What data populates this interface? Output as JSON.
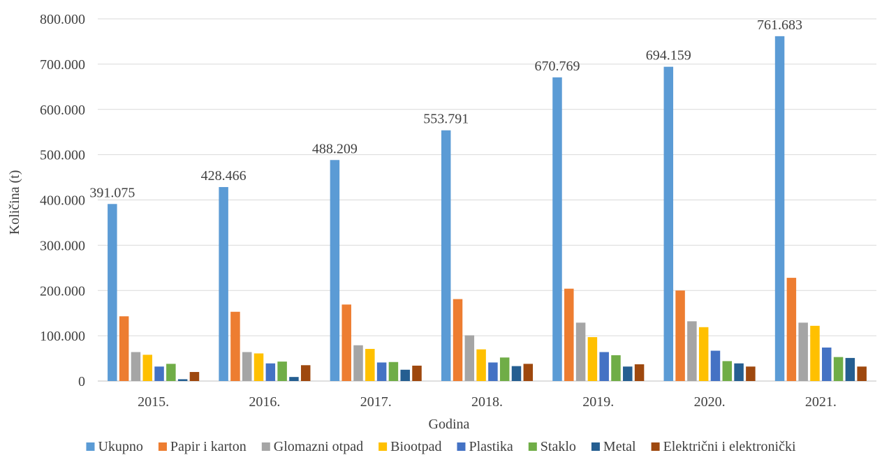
{
  "chart_data": {
    "type": "bar",
    "xlabel": "Godina",
    "ylabel": "Količina (t)",
    "ylim": [
      0,
      800000
    ],
    "yticks": [
      0,
      100000,
      200000,
      300000,
      400000,
      500000,
      600000,
      700000,
      800000
    ],
    "ytick_labels": [
      "0",
      "100.000",
      "200.000",
      "300.000",
      "400.000",
      "500.000",
      "600.000",
      "700.000",
      "800.000"
    ],
    "grid": true,
    "legend_position": "bottom",
    "categories": [
      "2015.",
      "2016.",
      "2017.",
      "2018.",
      "2019.",
      "2020.",
      "2021."
    ],
    "series": [
      {
        "name": "Ukupno",
        "color": "#5B9BD5",
        "values": [
          391075,
          428466,
          488209,
          553791,
          670769,
          694159,
          761683
        ],
        "labels": [
          "391.075",
          "428.466",
          "488.209",
          "553.791",
          "670.769",
          "694.159",
          "761.683"
        ]
      },
      {
        "name": "Papir i karton",
        "color": "#ED7D31",
        "values": [
          143000,
          153000,
          169000,
          181000,
          204000,
          200000,
          228000
        ]
      },
      {
        "name": "Glomazni otpad",
        "color": "#A5A5A5",
        "values": [
          64000,
          64000,
          79000,
          101000,
          129000,
          132000,
          129000
        ]
      },
      {
        "name": "Biootpad",
        "color": "#FFC000",
        "values": [
          58000,
          61000,
          71000,
          70000,
          97000,
          119000,
          122000
        ]
      },
      {
        "name": "Plastika",
        "color": "#4472C4",
        "values": [
          32000,
          39000,
          41000,
          41000,
          64000,
          67000,
          74000
        ]
      },
      {
        "name": "Staklo",
        "color": "#70AD47",
        "values": [
          38000,
          43000,
          42000,
          52000,
          57000,
          44000,
          53000
        ]
      },
      {
        "name": "Metal",
        "color": "#255E91",
        "values": [
          4000,
          9000,
          25000,
          33000,
          32000,
          39000,
          51000
        ]
      },
      {
        "name": "Električni i elektronički",
        "color": "#9E480E",
        "values": [
          20000,
          35000,
          34000,
          38000,
          37000,
          32000,
          32000
        ]
      }
    ]
  }
}
